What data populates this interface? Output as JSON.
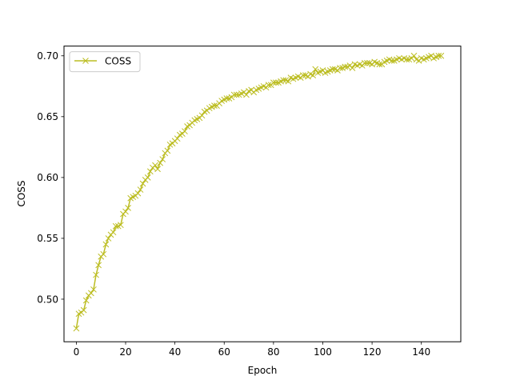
{
  "chart_data": {
    "type": "line",
    "title": "",
    "xlabel": "Epoch",
    "ylabel": "COSS",
    "xlim": [
      -5,
      156
    ],
    "ylim": [
      0.465,
      0.708
    ],
    "xticks": [
      0,
      20,
      40,
      60,
      80,
      100,
      120,
      140
    ],
    "yticks": [
      0.5,
      0.55,
      0.6,
      0.65,
      0.7
    ],
    "ytick_labels": [
      "0.50",
      "0.55",
      "0.60",
      "0.65",
      "0.70"
    ],
    "grid": false,
    "legend": {
      "position": "top-left"
    },
    "series": [
      {
        "name": "COSS",
        "color": "#bcbd22",
        "marker": "x",
        "x": [
          0,
          1,
          2,
          3,
          4,
          5,
          6,
          7,
          8,
          9,
          10,
          11,
          12,
          13,
          14,
          15,
          16,
          17,
          18,
          19,
          20,
          21,
          22,
          23,
          24,
          25,
          26,
          27,
          28,
          29,
          30,
          31,
          32,
          33,
          34,
          35,
          36,
          37,
          38,
          39,
          40,
          41,
          42,
          43,
          44,
          45,
          46,
          47,
          48,
          49,
          50,
          51,
          52,
          53,
          54,
          55,
          56,
          57,
          58,
          59,
          60,
          61,
          62,
          63,
          64,
          65,
          66,
          67,
          68,
          69,
          70,
          71,
          72,
          73,
          74,
          75,
          76,
          77,
          78,
          79,
          80,
          81,
          82,
          83,
          84,
          85,
          86,
          87,
          88,
          89,
          90,
          91,
          92,
          93,
          94,
          95,
          96,
          97,
          98,
          99,
          100,
          101,
          102,
          103,
          104,
          105,
          106,
          107,
          108,
          109,
          110,
          111,
          112,
          113,
          114,
          115,
          116,
          117,
          118,
          119,
          120,
          121,
          122,
          123,
          124,
          125,
          126,
          127,
          128,
          129,
          130,
          131,
          132,
          133,
          134,
          135,
          136,
          137,
          138,
          139,
          140,
          141,
          142,
          143,
          144,
          145,
          146,
          147,
          148
        ],
        "values": [
          0.476,
          0.488,
          0.489,
          0.491,
          0.499,
          0.503,
          0.505,
          0.508,
          0.52,
          0.528,
          0.535,
          0.537,
          0.545,
          0.55,
          0.553,
          0.555,
          0.56,
          0.56,
          0.561,
          0.57,
          0.572,
          0.575,
          0.583,
          0.584,
          0.585,
          0.587,
          0.59,
          0.595,
          0.598,
          0.6,
          0.605,
          0.608,
          0.61,
          0.607,
          0.612,
          0.615,
          0.62,
          0.622,
          0.627,
          0.628,
          0.63,
          0.632,
          0.635,
          0.636,
          0.638,
          0.642,
          0.643,
          0.645,
          0.647,
          0.648,
          0.649,
          0.651,
          0.654,
          0.655,
          0.657,
          0.658,
          0.659,
          0.659,
          0.661,
          0.663,
          0.664,
          0.665,
          0.665,
          0.666,
          0.668,
          0.668,
          0.668,
          0.669,
          0.67,
          0.668,
          0.671,
          0.672,
          0.67,
          0.672,
          0.673,
          0.674,
          0.675,
          0.674,
          0.676,
          0.676,
          0.678,
          0.678,
          0.678,
          0.679,
          0.68,
          0.68,
          0.679,
          0.682,
          0.681,
          0.682,
          0.683,
          0.682,
          0.684,
          0.684,
          0.683,
          0.685,
          0.684,
          0.689,
          0.686,
          0.687,
          0.688,
          0.686,
          0.687,
          0.688,
          0.689,
          0.689,
          0.688,
          0.69,
          0.69,
          0.691,
          0.691,
          0.692,
          0.69,
          0.693,
          0.692,
          0.693,
          0.692,
          0.694,
          0.694,
          0.694,
          0.693,
          0.695,
          0.694,
          0.693,
          0.693,
          0.695,
          0.696,
          0.697,
          0.696,
          0.696,
          0.697,
          0.698,
          0.697,
          0.698,
          0.697,
          0.697,
          0.698,
          0.7,
          0.697,
          0.696,
          0.698,
          0.697,
          0.698,
          0.699,
          0.7,
          0.698,
          0.699,
          0.7,
          0.7
        ]
      }
    ]
  }
}
